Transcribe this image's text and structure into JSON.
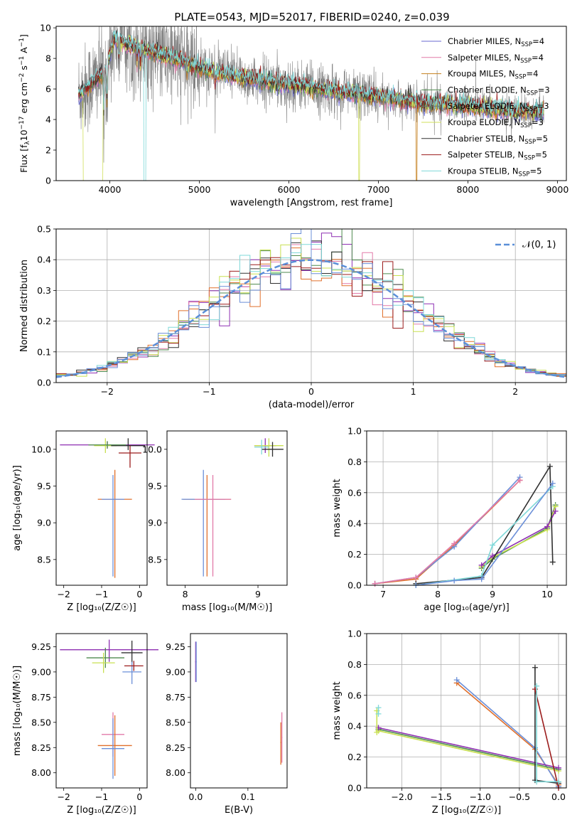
{
  "figure": {
    "title": "PLATE=0543, MJD=52017, FIBERID=0240, z=0.039",
    "model_colors": [
      "#6a6ad2",
      "#e27aa8",
      "#c47f1d",
      "#4e8a4e",
      "#6e6e6e",
      "#d0df5a",
      "#303030",
      "#9b1c1c",
      "#7fd8d8"
    ],
    "model_names": [
      "Chabrier MILES",
      "Salpeter MILES",
      "Kroupa MILES",
      "Chabrier ELODIE",
      "Salpeter ELODIE",
      "Kroupa ELODIE",
      "Chabrier STELIB",
      "Salpeter STELIB",
      "Kroupa STELIB"
    ],
    "model_nssp": [
      "4",
      "4",
      "4",
      "3",
      "3",
      "3",
      "5",
      "5",
      "5"
    ],
    "nssp_prefix": "N",
    "nssp_sub": "SSP",
    "panel_colors": [
      "#8e2fb2",
      "#e27aa8",
      "#e0702c",
      "#4e8a4e",
      "#303030",
      "#c8e050",
      "#9b1c1c",
      "#7fd8d8",
      "#6b8fd8"
    ]
  },
  "chart_data": [
    {
      "id": "spectrum",
      "type": "line",
      "xlabel": "wavelength [Angstrom, rest frame]",
      "ylabel_prefix": "Flux [f",
      "ylabel_lambda_sub": "λ",
      "ylabel_mid": "10",
      "ylabel_exp": "−17",
      "ylabel_units": " erg cm",
      "ylabel_cm_exp": "−2",
      "ylabel_s": " s",
      "ylabel_s_exp": "−1",
      "ylabel_A": " A",
      "ylabel_A_exp": "−1",
      "ylabel_end": "]",
      "xlim": [
        3400,
        9100
      ],
      "ylim": [
        0,
        10.1
      ],
      "xticks": [
        "4000",
        "5000",
        "6000",
        "7000",
        "8000",
        "9000"
      ],
      "yticks": [
        "0",
        "2",
        "4",
        "6",
        "8",
        "10"
      ],
      "grid": false,
      "legend": "top-right",
      "data_range": [
        3650,
        8850
      ],
      "continuum_points": [
        [
          3650,
          5.6
        ],
        [
          3800,
          6.4
        ],
        [
          3950,
          7.2
        ],
        [
          4050,
          9.3
        ],
        [
          4200,
          8.9
        ],
        [
          4400,
          8.6
        ],
        [
          4600,
          8.2
        ],
        [
          4800,
          7.9
        ],
        [
          5000,
          7.4
        ],
        [
          5200,
          7.1
        ],
        [
          5500,
          6.7
        ],
        [
          6000,
          6.3
        ],
        [
          6500,
          5.9
        ],
        [
          7000,
          5.5
        ],
        [
          7500,
          5.1
        ],
        [
          8000,
          4.9
        ],
        [
          8500,
          4.6
        ],
        [
          8850,
          4.5
        ]
      ],
      "absorption_lines": [
        [
          3933,
          3.5
        ],
        [
          3968,
          3.0
        ],
        [
          4101,
          1.5
        ],
        [
          4304,
          1.2
        ],
        [
          4340,
          1.5
        ],
        [
          4861,
          0.8
        ],
        [
          5175,
          0.9
        ],
        [
          5890,
          0.7
        ],
        [
          6563,
          0.6
        ],
        [
          8542,
          0.4
        ]
      ],
      "model_dropouts": [
        [
          3700,
          3920,
          5
        ],
        [
          4380,
          4400,
          8
        ],
        [
          6780,
          6790,
          5
        ],
        [
          7420,
          7430,
          2
        ]
      ]
    },
    {
      "id": "residuals",
      "type": "step",
      "xlabel": "(data-model)/error",
      "ylabel": "Normed distribution",
      "xlim": [
        -2.5,
        2.5
      ],
      "ylim": [
        0,
        0.5
      ],
      "xticks": [
        "−2",
        "−1",
        "0",
        "1",
        "2"
      ],
      "yticks": [
        "0.0",
        "0.1",
        "0.2",
        "0.3",
        "0.4",
        "0.5"
      ],
      "grid": true,
      "legend": "top-right",
      "legend_label": "𝒩(0, 1)",
      "bin_width": 0.1,
      "normal_color": "#5b8fd8"
    },
    {
      "id": "age_vs_Z",
      "type": "errorbar",
      "xlabel": "Z [log₁₀(Z/Z☉)]",
      "ylabel": "age  [log₁₀(age/yr)]",
      "xlim": [
        -2.2,
        0.2
      ],
      "ylim": [
        8.15,
        10.25
      ],
      "xticks": [
        "−2",
        "−1",
        "0"
      ],
      "xtick_values": [
        -2,
        -1,
        0
      ],
      "yticks": [
        "8.5",
        "9.0",
        "9.5",
        "10.0"
      ],
      "ytick_values": [
        8.5,
        9.0,
        9.5,
        10.0
      ],
      "points": [
        {
          "x": -0.65,
          "y": 9.32,
          "xerr": 0.45,
          "yerr_lo": 1.07,
          "yerr_hi": 0.4,
          "c": 2
        },
        {
          "x": -0.7,
          "y": 9.32,
          "xerr": 0.3,
          "yerr_lo": 1.05,
          "yerr_hi": 0.33,
          "c": 8
        },
        {
          "x": -0.85,
          "y": 10.06,
          "xerr": 1.25,
          "yerr_lo": 0.05,
          "yerr_hi": 0.05,
          "c": 0
        },
        {
          "x": -0.9,
          "y": 10.05,
          "xerr": 0.3,
          "yerr_lo": 0.1,
          "yerr_hi": 0.1,
          "c": 5
        },
        {
          "x": -0.3,
          "y": 10.05,
          "xerr": 0.45,
          "yerr_lo": 0.06,
          "yerr_hi": 0.1,
          "c": 4
        },
        {
          "x": -0.25,
          "y": 9.95,
          "xerr": 0.3,
          "yerr_lo": 0.2,
          "yerr_hi": 0.1,
          "c": 6
        },
        {
          "x": -0.85,
          "y": 10.06,
          "xerr": 0.5,
          "yerr_lo": 0.05,
          "yerr_hi": 0.05,
          "c": 3
        }
      ]
    },
    {
      "id": "age_vs_mass",
      "type": "errorbar",
      "xlabel": "mass [log₁₀(M/M☉)]",
      "ylabel": "",
      "xlim": [
        7.75,
        9.4
      ],
      "ylim": [
        8.15,
        10.25
      ],
      "xticks": [
        "8",
        "9"
      ],
      "xtick_values": [
        8,
        9
      ],
      "yticks": [
        "8.5",
        "9.0",
        "9.5",
        "10.0"
      ],
      "ytick_values": [
        8.5,
        9.0,
        9.5,
        10.0
      ],
      "points": [
        {
          "x": 8.3,
          "y": 9.32,
          "xerr": 0.33,
          "yerr_lo": 1.05,
          "yerr_hi": 0.33,
          "c": 2
        },
        {
          "x": 8.25,
          "y": 9.32,
          "xerr": 0.3,
          "yerr_lo": 1.05,
          "yerr_hi": 0.4,
          "c": 8
        },
        {
          "x": 8.38,
          "y": 9.32,
          "xerr": 0.25,
          "yerr_lo": 1.05,
          "yerr_hi": 0.33,
          "c": 1
        },
        {
          "x": 9.1,
          "y": 10.05,
          "xerr": 0.15,
          "yerr_lo": 0.1,
          "yerr_hi": 0.1,
          "c": 0
        },
        {
          "x": 9.15,
          "y": 10.05,
          "xerr": 0.2,
          "yerr_lo": 0.15,
          "yerr_hi": 0.1,
          "c": 5
        },
        {
          "x": 9.2,
          "y": 10.0,
          "xerr": 0.15,
          "yerr_lo": 0.1,
          "yerr_hi": 0.1,
          "c": 4
        },
        {
          "x": 9.05,
          "y": 10.03,
          "xerr": 0.1,
          "yerr_lo": 0.1,
          "yerr_hi": 0.1,
          "c": 7
        }
      ]
    },
    {
      "id": "massweight_vs_age",
      "type": "line",
      "xlabel": "age  [log₁₀(age/yr)]",
      "ylabel": "mass weight",
      "xlim": [
        6.7,
        10.35
      ],
      "ylim": [
        0,
        1.0
      ],
      "xticks": [
        "7",
        "8",
        "9",
        "10"
      ],
      "xtick_values": [
        7,
        8,
        9,
        10
      ],
      "yticks": [
        "0.0",
        "0.2",
        "0.4",
        "0.6",
        "0.8",
        "1.0"
      ],
      "ytick_values": [
        0,
        0.2,
        0.4,
        0.6,
        0.8,
        1.0
      ],
      "grid": true,
      "series": [
        {
          "c": 2,
          "points": [
            [
              6.85,
              0.01
            ],
            [
              7.6,
              0.04
            ],
            [
              8.3,
              0.26
            ],
            [
              9.5,
              0.68
            ]
          ]
        },
        {
          "c": 8,
          "points": [
            [
              6.85,
              0.01
            ],
            [
              7.6,
              0.05
            ],
            [
              8.3,
              0.25
            ],
            [
              9.5,
              0.7
            ]
          ]
        },
        {
          "c": 1,
          "points": [
            [
              6.85,
              0.01
            ],
            [
              7.6,
              0.05
            ],
            [
              8.3,
              0.27
            ],
            [
              9.5,
              0.68
            ]
          ]
        },
        {
          "c": 3,
          "points": [
            [
              8.8,
              0.11
            ],
            [
              9.0,
              0.17
            ],
            [
              10.0,
              0.37
            ],
            [
              10.15,
              0.52
            ]
          ]
        },
        {
          "c": 5,
          "points": [
            [
              8.8,
              0.12
            ],
            [
              9.0,
              0.18
            ],
            [
              10.0,
              0.36
            ],
            [
              10.15,
              0.51
            ]
          ]
        },
        {
          "c": 0,
          "points": [
            [
              8.8,
              0.13
            ],
            [
              9.0,
              0.19
            ],
            [
              10.0,
              0.38
            ],
            [
              10.15,
              0.48
            ]
          ]
        },
        {
          "c": 4,
          "points": [
            [
              7.6,
              0.01
            ],
            [
              8.8,
              0.05
            ],
            [
              10.05,
              0.77
            ],
            [
              10.1,
              0.15
            ]
          ]
        },
        {
          "c": 7,
          "points": [
            [
              7.6,
              0.0
            ],
            [
              8.8,
              0.06
            ],
            [
              9.0,
              0.26
            ],
            [
              10.1,
              0.64
            ]
          ]
        },
        {
          "c": 8,
          "points": [
            [
              7.6,
              0.0
            ],
            [
              8.3,
              0.03
            ],
            [
              8.8,
              0.04
            ],
            [
              10.1,
              0.66
            ]
          ]
        }
      ]
    },
    {
      "id": "mass_vs_Z",
      "type": "errorbar",
      "xlabel": "Z [log₁₀(Z/Z☉)]",
      "ylabel": "mass [log₁₀(M/M☉)]",
      "xlim": [
        -2.2,
        0.2
      ],
      "ylim": [
        7.85,
        9.38
      ],
      "xticks": [
        "−2",
        "−1",
        "0"
      ],
      "xtick_values": [
        -2,
        -1,
        0
      ],
      "yticks": [
        "8.00",
        "8.25",
        "8.50",
        "8.75",
        "9.00",
        "9.25"
      ],
      "ytick_values": [
        8.0,
        8.25,
        8.5,
        8.75,
        9.0,
        9.25
      ],
      "points": [
        {
          "x": -0.8,
          "y": 9.22,
          "xerr": 1.3,
          "yerr_lo": 0.12,
          "yerr_hi": 0.1,
          "c": 0
        },
        {
          "x": -0.9,
          "y": 9.14,
          "xerr": 0.5,
          "yerr_lo": 0.1,
          "yerr_hi": 0.1,
          "c": 3
        },
        {
          "x": -0.95,
          "y": 9.09,
          "xerr": 0.3,
          "yerr_lo": 0.1,
          "yerr_hi": 0.1,
          "c": 5
        },
        {
          "x": -0.2,
          "y": 9.19,
          "xerr": 0.28,
          "yerr_lo": 0.1,
          "yerr_hi": 0.12,
          "c": 4
        },
        {
          "x": -0.2,
          "y": 9.0,
          "xerr": 0.25,
          "yerr_lo": 0.12,
          "yerr_hi": 0.1,
          "c": 8
        },
        {
          "x": -0.15,
          "y": 9.06,
          "xerr": 0.25,
          "yerr_lo": 0.05,
          "yerr_hi": 0.05,
          "c": 6
        },
        {
          "x": -0.7,
          "y": 8.38,
          "xerr": 0.3,
          "yerr_lo": 0.22,
          "yerr_hi": 0.22,
          "c": 1
        },
        {
          "x": -0.65,
          "y": 8.27,
          "xerr": 0.45,
          "yerr_lo": 0.3,
          "yerr_hi": 0.3,
          "c": 2
        },
        {
          "x": -0.7,
          "y": 8.24,
          "xerr": 0.3,
          "yerr_lo": 0.3,
          "yerr_hi": 0.3,
          "c": 8
        }
      ]
    },
    {
      "id": "mass_vs_ebv",
      "type": "errorbar",
      "xlabel": "E(B-V)",
      "ylabel": "",
      "xlim": [
        -0.01,
        0.175
      ],
      "ylim": [
        7.85,
        9.38
      ],
      "xticks": [
        "0.0",
        "0.1"
      ],
      "xtick_values": [
        0,
        0.1
      ],
      "yticks": [
        "8.00",
        "8.25",
        "8.50",
        "8.75",
        "9.00",
        "9.25"
      ],
      "ytick_values": [
        8.0,
        8.25,
        8.5,
        8.75,
        9.0,
        9.25
      ],
      "points": [
        {
          "x": 0.0,
          "y": 9.1,
          "xerr": 0.001,
          "yerr_lo": 0.2,
          "yerr_hi": 0.2,
          "c": 0
        },
        {
          "x": 0.001,
          "y": 9.1,
          "xerr": 0.001,
          "yerr_lo": 0.2,
          "yerr_hi": 0.2,
          "c": 8
        },
        {
          "x": 0.163,
          "y": 8.3,
          "xerr": 0.001,
          "yerr_lo": 0.22,
          "yerr_hi": 0.2,
          "c": 2
        },
        {
          "x": 0.165,
          "y": 8.35,
          "xerr": 0.001,
          "yerr_lo": 0.25,
          "yerr_hi": 0.25,
          "c": 1
        }
      ]
    },
    {
      "id": "massweight_vs_Z",
      "type": "line",
      "xlabel": "Z [log₁₀(Z/Z☉)]",
      "ylabel": "mass weight",
      "xlim": [
        -2.45,
        0.1
      ],
      "ylim": [
        0,
        1.0
      ],
      "xticks": [
        "−2.0",
        "−1.5",
        "−1.0",
        "−0.5",
        "0.0"
      ],
      "xtick_values": [
        -2.0,
        -1.5,
        -1.0,
        -0.5,
        0.0
      ],
      "yticks": [
        "0.0",
        "0.2",
        "0.4",
        "0.6",
        "0.8",
        "1.0"
      ],
      "ytick_values": [
        0,
        0.2,
        0.4,
        0.6,
        0.8,
        1.0
      ],
      "grid": true,
      "series": [
        {
          "c": 2,
          "points": [
            [
              -1.3,
              0.68
            ],
            [
              -0.3,
              0.25
            ],
            [
              0.0,
              0.02
            ]
          ]
        },
        {
          "c": 8,
          "points": [
            [
              -1.3,
              0.7
            ],
            [
              -0.3,
              0.26
            ],
            [
              0.0,
              0.01
            ]
          ]
        },
        {
          "c": 3,
          "points": [
            [
              -2.3,
              0.38
            ],
            [
              0.0,
              0.12
            ]
          ]
        },
        {
          "c": 5,
          "points": [
            [
              -2.3,
              0.37
            ],
            [
              0.0,
              0.11
            ]
          ]
        },
        {
          "c": 0,
          "points": [
            [
              -2.3,
              0.39
            ],
            [
              0.0,
              0.13
            ]
          ]
        },
        {
          "c": 5,
          "points": [
            [
              -2.32,
              0.5
            ],
            [
              -2.32,
              0.36
            ]
          ]
        },
        {
          "c": 7,
          "points": [
            [
              -2.3,
              0.52
            ],
            [
              -2.3,
              0.48
            ]
          ]
        },
        {
          "c": 4,
          "points": [
            [
              -0.3,
              0.78
            ],
            [
              -0.3,
              0.05
            ],
            [
              0.0,
              0.03
            ]
          ]
        },
        {
          "c": 6,
          "points": [
            [
              -0.3,
              0.64
            ],
            [
              0.0,
              0.0
            ]
          ]
        },
        {
          "c": 7,
          "points": [
            [
              -0.28,
              0.66
            ],
            [
              -0.28,
              0.04
            ],
            [
              0.0,
              0.04
            ]
          ]
        }
      ]
    }
  ]
}
